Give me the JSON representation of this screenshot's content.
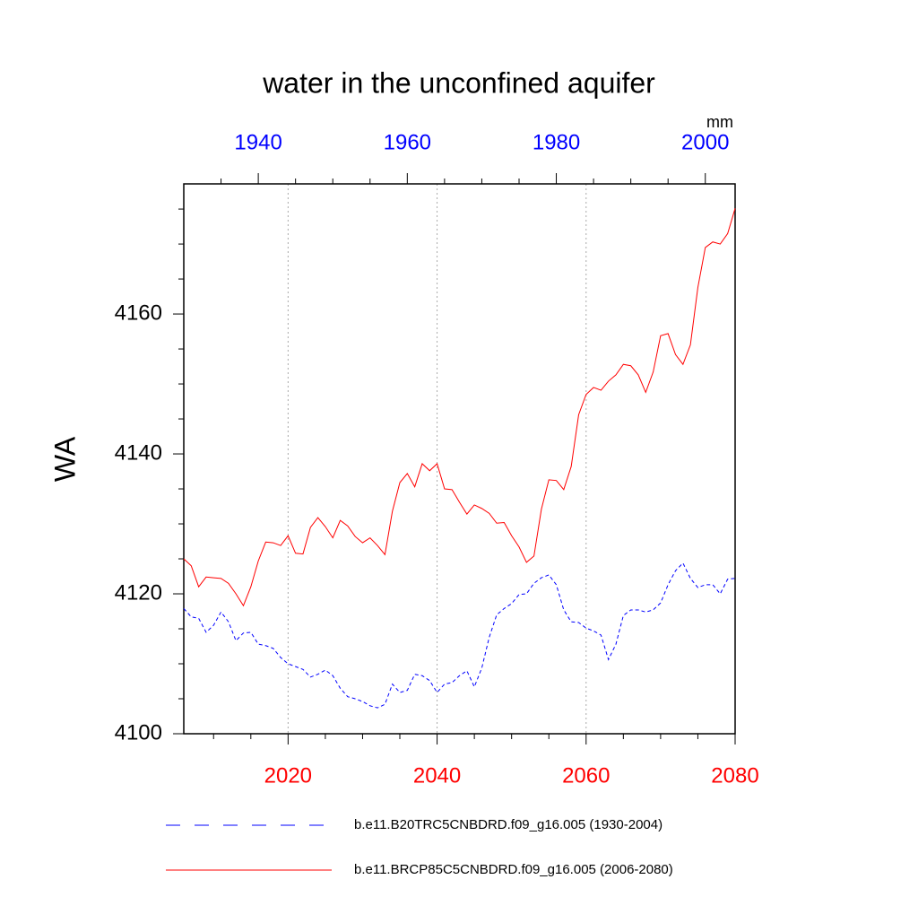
{
  "chart_data": {
    "type": "line",
    "title": "water in the unconfined aquifer",
    "y_label": "WA",
    "units": "mm",
    "xlim": [
      2006,
      2080
    ],
    "xticks": [
      2020,
      2040,
      2060,
      2080
    ],
    "xminorticks": [
      2010,
      2015,
      2025,
      2030,
      2035,
      2045,
      2050,
      2055,
      2065,
      2070,
      2075
    ],
    "xtick_color": "#ff0000",
    "x2lim": [
      1930,
      2004
    ],
    "x2ticks": [
      1940,
      1960,
      1980,
      2000
    ],
    "x2minorticks": [
      1935,
      1945,
      1950,
      1955,
      1965,
      1970,
      1975,
      1985,
      1990,
      1995
    ],
    "x2tick_color": "#0000ff",
    "ylim": [
      4100,
      4178.6
    ],
    "yticks": [
      4100,
      4120,
      4140,
      4160
    ],
    "yminorticks": [
      4105,
      4110,
      4115,
      4125,
      4130,
      4135,
      4145,
      4150,
      4155,
      4165,
      4170,
      4175
    ],
    "grid": true,
    "series": [
      {
        "name": "b.e11.B20TRC5CNBDRD.f09_g16.005 (1930-2004)",
        "color": "#0000ff",
        "dash": true,
        "axis": "x2",
        "x": [
          1930,
          1931,
          1932,
          1933,
          1934,
          1935,
          1936,
          1937,
          1938,
          1939,
          1940,
          1941,
          1942,
          1943,
          1944,
          1945,
          1946,
          1947,
          1948,
          1949,
          1950,
          1951,
          1952,
          1953,
          1954,
          1955,
          1956,
          1957,
          1958,
          1959,
          1960,
          1961,
          1962,
          1963,
          1964,
          1965,
          1966,
          1967,
          1968,
          1969,
          1970,
          1971,
          1972,
          1973,
          1974,
          1975,
          1976,
          1977,
          1978,
          1979,
          1980,
          1981,
          1982,
          1983,
          1984,
          1985,
          1986,
          1987,
          1988,
          1989,
          1990,
          1991,
          1992,
          1993,
          1994,
          1995,
          1996,
          1997,
          1998,
          1999,
          2000,
          2001,
          2002,
          2003,
          2004
        ],
        "values": [
          4117.9,
          4116.7,
          4116.5,
          4114.5,
          4115.5,
          4117.4,
          4116,
          4113.3,
          4114.4,
          4114.5,
          4112.8,
          4112.6,
          4112.2,
          4110.9,
          4110,
          4109.6,
          4109.2,
          4108.1,
          4108.5,
          4109.1,
          4108.3,
          4106.5,
          4105.3,
          4105,
          4104.6,
          4104,
          4103.7,
          4104.2,
          4107.1,
          4105.9,
          4106.2,
          4108.5,
          4108.3,
          4107.6,
          4105.9,
          4107.1,
          4107.3,
          4108.3,
          4109,
          4106.7,
          4109.4,
          4113.8,
          4117,
          4117.9,
          4118.6,
          4119.9,
          4120,
          4121.5,
          4122.3,
          4122.7,
          4121.3,
          4117.7,
          4116,
          4115.9,
          4115.1,
          4114.7,
          4114.1,
          4110.6,
          4112.8,
          4116.9,
          4117.7,
          4117.7,
          4117.4,
          4117.7,
          4118.7,
          4121.3,
          4123.3,
          4124.4,
          4122.2,
          4120.9,
          4121.3,
          4121.3,
          4120,
          4122.1,
          4122.2
        ]
      },
      {
        "name": "b.e11.BRCP85C5CNBDRD.f09_g16.005 (2006-2080)",
        "color": "#ff0000",
        "dash": false,
        "axis": "x",
        "x": [
          2006,
          2007,
          2008,
          2009,
          2010,
          2011,
          2012,
          2013,
          2014,
          2015,
          2016,
          2017,
          2018,
          2019,
          2020,
          2021,
          2022,
          2023,
          2024,
          2025,
          2026,
          2027,
          2028,
          2029,
          2030,
          2031,
          2032,
          2033,
          2034,
          2035,
          2036,
          2037,
          2038,
          2039,
          2040,
          2041,
          2042,
          2043,
          2044,
          2045,
          2046,
          2047,
          2048,
          2049,
          2050,
          2051,
          2052,
          2053,
          2054,
          2055,
          2056,
          2057,
          2058,
          2059,
          2060,
          2061,
          2062,
          2063,
          2064,
          2065,
          2066,
          2067,
          2068,
          2069,
          2070,
          2071,
          2072,
          2073,
          2074,
          2075,
          2076,
          2077,
          2078,
          2079,
          2080
        ],
        "values": [
          4125,
          4124,
          4121,
          4122.4,
          4122.3,
          4122.2,
          4121.5,
          4120,
          4118.3,
          4121,
          4124.7,
          4127.4,
          4127.3,
          4126.9,
          4128.3,
          4125.8,
          4125.7,
          4129.5,
          4130.9,
          4129.6,
          4128,
          4130.5,
          4129.7,
          4128.2,
          4127.3,
          4128,
          4126.9,
          4125.6,
          4131.8,
          4135.9,
          4137.2,
          4135.3,
          4138.6,
          4137.6,
          4138.6,
          4135,
          4134.9,
          4133.1,
          4131.4,
          4132.7,
          4132.2,
          4131.5,
          4130.1,
          4130.2,
          4128.3,
          4126.7,
          4124.5,
          4125.4,
          4132.1,
          4136.3,
          4136.2,
          4134.9,
          4138.2,
          4145.6,
          4148.5,
          4149.5,
          4149.1,
          4150.4,
          4151.3,
          4152.8,
          4152.6,
          4151.3,
          4148.8,
          4151.7,
          4156.9,
          4157.2,
          4154.2,
          4152.8,
          4155.6,
          4163.8,
          4169.5,
          4170.3,
          4170,
          4171.5,
          4175.1
        ]
      }
    ]
  }
}
